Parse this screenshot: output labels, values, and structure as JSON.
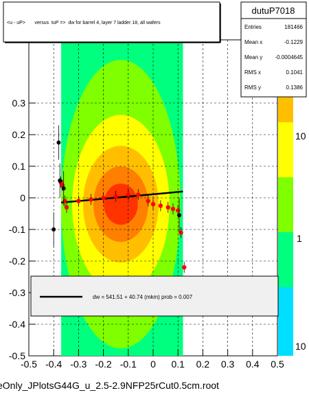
{
  "title": "<u - uP>       versus  tuP =>  dw for barrel 4, layer 7 ladder 18, all wafers",
  "footer_filename": "eOnly_JPlotsG44G_u_2.5-2.9NFP25rCut0.5cm.root",
  "stats": {
    "name": "dutuP7018",
    "rows": [
      {
        "label": "Entries",
        "value": "181466"
      },
      {
        "label": "Mean x",
        "value": "-0.1229"
      },
      {
        "label": "Mean y",
        "value": "-0.0004645"
      },
      {
        "label": "RMS x",
        "value": "0.1041"
      },
      {
        "label": "RMS y",
        "value": "0.1386"
      }
    ]
  },
  "legend": {
    "fit_text": "dw =  541.51 + 40.74 (mkm) prob = 0.007",
    "line_color": "#000000"
  },
  "colors": {
    "profile_points": "#ff0000",
    "fit_line": "#000000",
    "palette": [
      "#00ff7f",
      "#7fff00",
      "#ffff00",
      "#ffbf00",
      "#ff7f00",
      "#ff3300"
    ]
  },
  "chart_data": {
    "type": "heatmap",
    "xlim": [
      -0.5,
      0.5
    ],
    "ylim": [
      -0.5,
      0.5
    ],
    "grid": true,
    "x_ticks": [
      -0.5,
      -0.4,
      -0.3,
      -0.2,
      -0.1,
      0,
      0.1,
      0.2,
      0.3,
      0.4,
      0.5
    ],
    "x_tick_labels": [
      "-0.5",
      "-0.4",
      "-0.3",
      "-0.2",
      "-0.1",
      "0",
      "0.1",
      "0.2",
      "0.3",
      "0.4",
      "0.5"
    ],
    "y_ticks": [
      -0.5,
      -0.4,
      -0.3,
      -0.2,
      -0.1,
      0,
      0.1,
      0.2,
      0.3
    ],
    "y_tick_labels": [
      "-0.5",
      "-0.4",
      "-0.3",
      "-0.2",
      "-0.1",
      "0",
      "0.1",
      "0.2",
      "0.3"
    ],
    "z_scale": "log",
    "z_tick_labels": [
      "10",
      "1",
      "10"
    ],
    "occupied_x_range": [
      -0.37,
      0.12
    ],
    "core_center": [
      -0.13,
      -0.02
    ],
    "profile_points": [
      {
        "x": -0.372,
        "y": 0.05
      },
      {
        "x": -0.365,
        "y": 0.04
      },
      {
        "x": -0.355,
        "y": -0.01
      },
      {
        "x": -0.348,
        "y": -0.03
      },
      {
        "x": -0.3,
        "y": -0.01
      },
      {
        "x": -0.25,
        "y": -0.005
      },
      {
        "x": -0.2,
        "y": 0.0
      },
      {
        "x": -0.15,
        "y": 0.005
      },
      {
        "x": -0.1,
        "y": 0.01
      },
      {
        "x": -0.06,
        "y": 0.01
      },
      {
        "x": -0.02,
        "y": -0.01
      },
      {
        "x": 0.0,
        "y": -0.02
      },
      {
        "x": 0.03,
        "y": -0.025
      },
      {
        "x": 0.06,
        "y": -0.03
      },
      {
        "x": 0.08,
        "y": -0.035
      },
      {
        "x": 0.1,
        "y": -0.04
      },
      {
        "x": 0.112,
        "y": -0.11
      },
      {
        "x": 0.125,
        "y": -0.22
      }
    ],
    "outlier_points": [
      {
        "x": -0.38,
        "y": 0.175
      },
      {
        "x": -0.375,
        "y": 0.055
      },
      {
        "x": -0.36,
        "y": 0.03
      },
      {
        "x": -0.4,
        "y": -0.1
      },
      {
        "x": 0.105,
        "y": -0.055
      }
    ],
    "fit_line": {
      "x": [
        -0.37,
        0.12
      ],
      "y": [
        -0.015,
        0.02
      ]
    }
  }
}
